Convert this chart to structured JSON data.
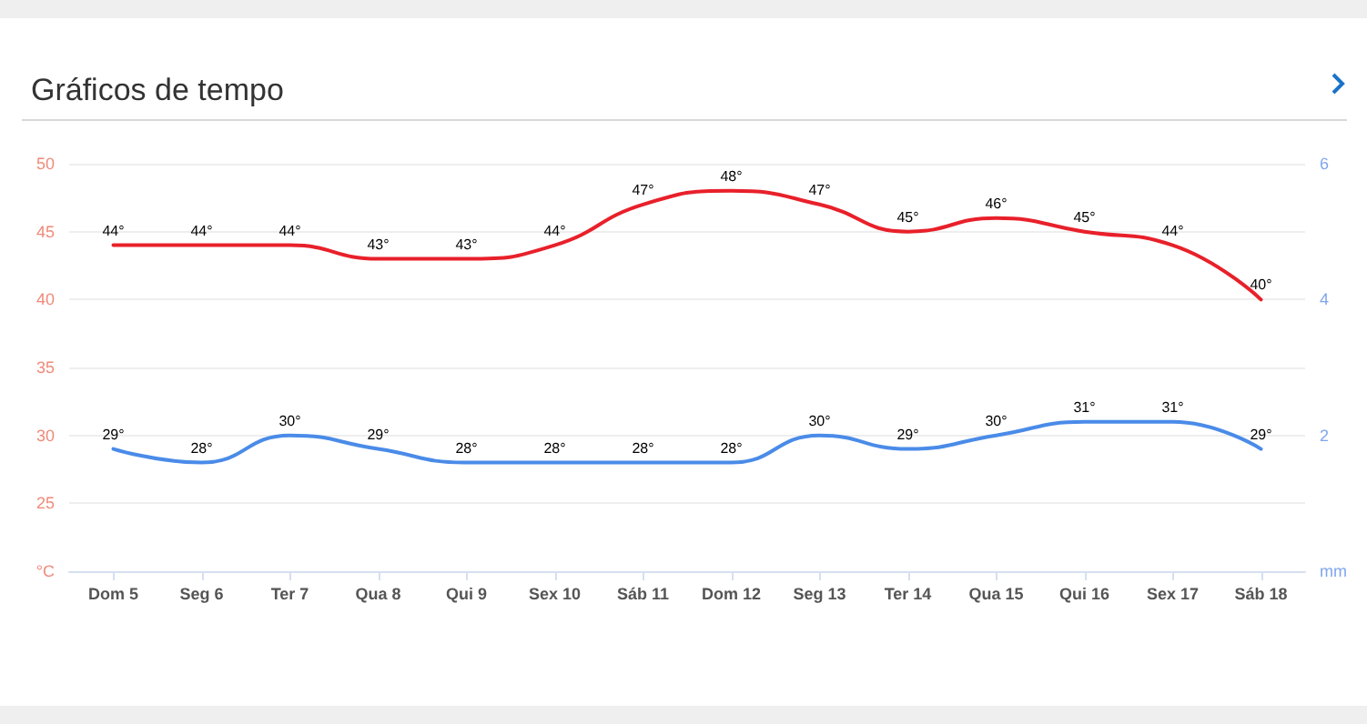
{
  "chart_data": {
    "type": "line",
    "title": "Gráficos de tempo",
    "categories": [
      "Dom 5",
      "Seg 6",
      "Ter 7",
      "Qua 8",
      "Qui 9",
      "Sex 10",
      "Sáb 11",
      "Dom 12",
      "Seg 13",
      "Ter 14",
      "Qua 15",
      "Qui 16",
      "Sex 17",
      "Sáb 18"
    ],
    "series": [
      {
        "color": "#e8202a",
        "values": [
          44,
          44,
          44,
          43,
          43,
          44,
          47,
          48,
          47,
          45,
          46,
          45,
          44,
          40
        ],
        "value_labels": [
          "44°",
          "44°",
          "44°",
          "43°",
          "43°",
          "44°",
          "47°",
          "48°",
          "47°",
          "45°",
          "46°",
          "45°",
          "44°",
          "40°"
        ]
      },
      {
        "color": "#4a8be8",
        "values": [
          29,
          28,
          30,
          29,
          28,
          28,
          28,
          28,
          30,
          29,
          30,
          31,
          31,
          29
        ],
        "value_labels": [
          "29°",
          "28°",
          "30°",
          "29°",
          "28°",
          "28°",
          "28°",
          "28°",
          "30°",
          "29°",
          "30°",
          "31°",
          "31°",
          "29°"
        ]
      }
    ],
    "ylim": [
      20,
      50
    ],
    "yticks": [
      {
        "value": 20,
        "label": "°C"
      },
      25,
      30,
      35,
      40,
      45,
      50
    ],
    "y2lim": [
      0,
      6
    ],
    "y2ticks": [
      {
        "value": 0,
        "label": "mm"
      },
      2,
      4,
      6
    ],
    "grid": "y",
    "marker": "none",
    "line_style": "solid"
  }
}
